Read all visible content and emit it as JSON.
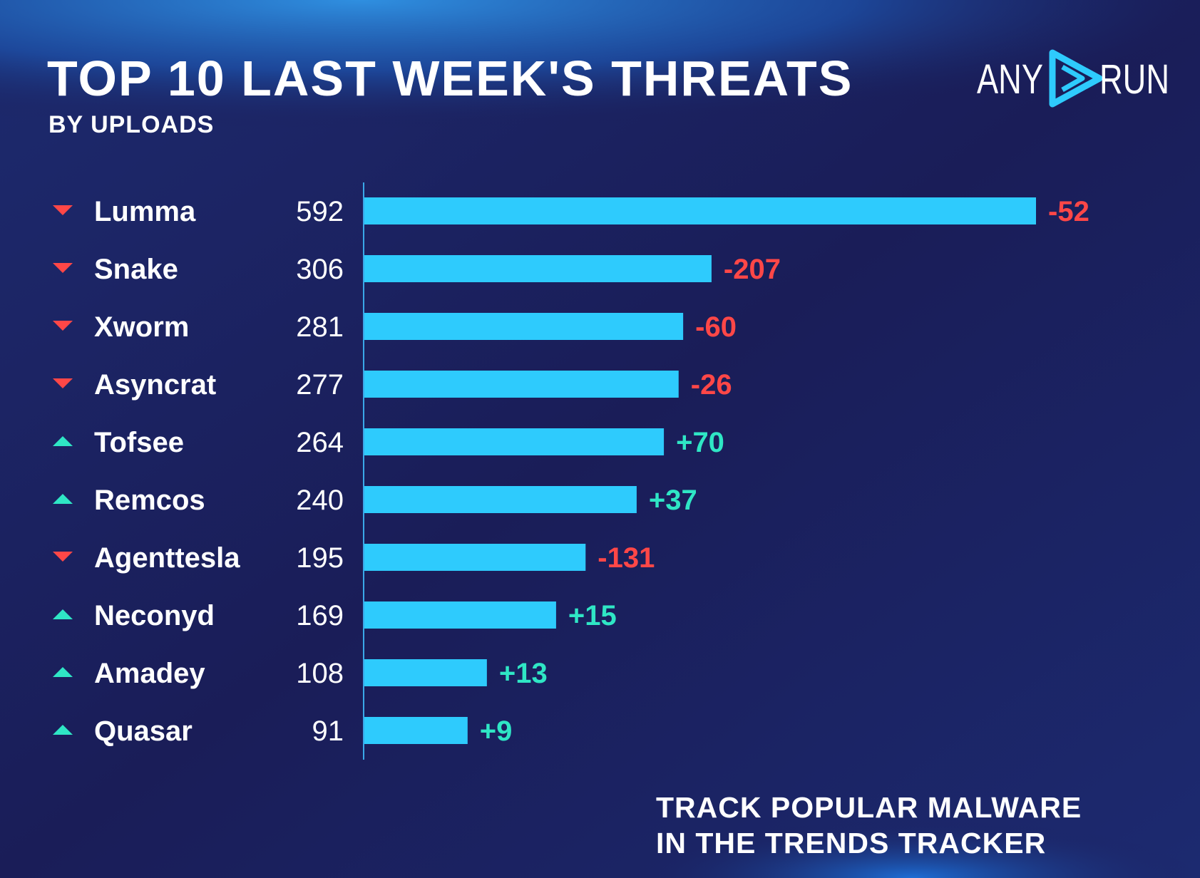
{
  "header": {
    "title": "TOP 10 LAST WEEK'S THREATS",
    "subtitle": "BY UPLOADS"
  },
  "logo": {
    "left_text": "ANY",
    "right_text": "RUN",
    "mark_icon": "play-triangle-icon"
  },
  "footer": {
    "line1": "TRACK POPULAR MALWARE",
    "line2": "IN THE TRENDS TRACKER"
  },
  "colors": {
    "background": "#1c1f58",
    "header_glow": "#1e7fd6",
    "bar": "#2ecbfd",
    "down": "#ff4747",
    "up": "#2fe6c5",
    "text": "#ffffff"
  },
  "chart_data": {
    "type": "bar",
    "orientation": "horizontal",
    "title": "TOP 10 LAST WEEK'S THREATS",
    "subtitle": "BY UPLOADS",
    "categories": [
      "Lumma",
      "Snake",
      "Xworm",
      "Asyncrat",
      "Tofsee",
      "Remcos",
      "Agenttesla",
      "Neconyd",
      "Amadey",
      "Quasar"
    ],
    "series": [
      {
        "values": [
          592,
          306,
          281,
          277,
          264,
          240,
          195,
          169,
          108,
          91
        ]
      }
    ],
    "changes": [
      "-52",
      "-207",
      "-60",
      "-26",
      "+70",
      "+37",
      "-131",
      "+15",
      "+13",
      "+9"
    ],
    "trend": [
      "down",
      "down",
      "down",
      "down",
      "up",
      "up",
      "down",
      "up",
      "up",
      "up"
    ],
    "xlim": [
      0,
      592
    ],
    "grid": false,
    "legend": "none"
  }
}
